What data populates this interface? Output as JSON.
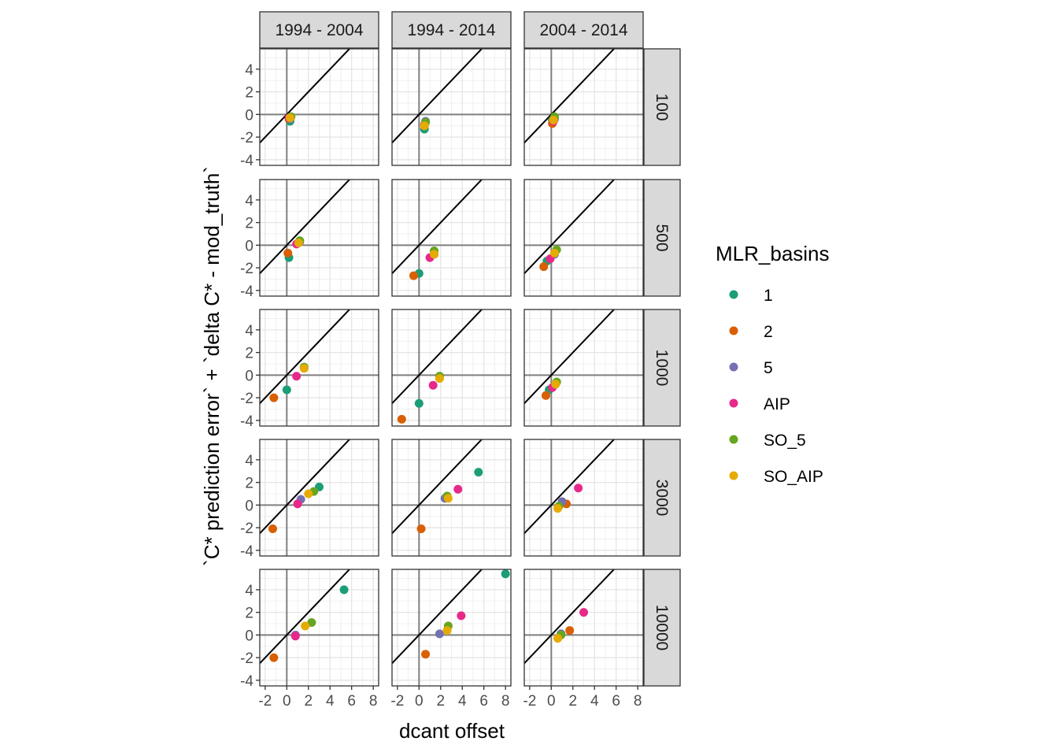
{
  "chart_data": {
    "type": "scatter",
    "xlabel": "dcant offset",
    "ylabel": "`C* prediction error` + `delta C* - mod_truth`",
    "xlim": [
      -2.5,
      8.5
    ],
    "ylim": [
      -4.5,
      5.8
    ],
    "x_ticks": [
      -2,
      0,
      2,
      4,
      6,
      8
    ],
    "y_ticks": [
      -4,
      -2,
      0,
      2,
      4
    ],
    "x_tick_labels": [
      "-2",
      "0",
      "2",
      "4",
      "6",
      "8"
    ],
    "y_tick_labels": [
      "-4",
      "-2",
      "0",
      "2",
      "4"
    ],
    "grid": true,
    "reference_line": "y = x",
    "col_facets": [
      "1994 - 2004",
      "1994 - 2014",
      "2004 - 2014"
    ],
    "row_facets": [
      "100",
      "500",
      "1000",
      "3000",
      "10000"
    ],
    "legend": {
      "title": "MLR_basins",
      "position": "right",
      "entries": [
        {
          "label": "1",
          "color": "#1B9E77"
        },
        {
          "label": "2",
          "color": "#D95F02"
        },
        {
          "label": "5",
          "color": "#7570B3"
        },
        {
          "label": "AIP",
          "color": "#E7298A"
        },
        {
          "label": "SO_5",
          "color": "#66A61E"
        },
        {
          "label": "SO_AIP",
          "color": "#E6AB02"
        }
      ]
    },
    "panels": [
      {
        "col": "1994 - 2004",
        "row": "100",
        "points": [
          {
            "s": "1",
            "x": 0.3,
            "y": -0.6
          },
          {
            "s": "2",
            "x": 0.2,
            "y": -0.4
          },
          {
            "s": "5",
            "x": 0.3,
            "y": -0.4
          },
          {
            "s": "AIP",
            "x": 0.2,
            "y": -0.3
          },
          {
            "s": "SO_5",
            "x": 0.4,
            "y": -0.2
          },
          {
            "s": "SO_AIP",
            "x": 0.3,
            "y": -0.3
          }
        ]
      },
      {
        "col": "1994 - 2014",
        "row": "100",
        "points": [
          {
            "s": "1",
            "x": 0.5,
            "y": -1.3
          },
          {
            "s": "2",
            "x": 0.5,
            "y": -1.0
          },
          {
            "s": "5",
            "x": 0.6,
            "y": -0.6
          },
          {
            "s": "AIP",
            "x": 0.5,
            "y": -0.9
          },
          {
            "s": "SO_5",
            "x": 0.6,
            "y": -0.7
          },
          {
            "s": "SO_AIP",
            "x": 0.5,
            "y": -1.0
          }
        ]
      },
      {
        "col": "2004 - 2014",
        "row": "100",
        "points": [
          {
            "s": "1",
            "x": 0.1,
            "y": -0.5
          },
          {
            "s": "2",
            "x": 0.1,
            "y": -0.8
          },
          {
            "s": "5",
            "x": 0.3,
            "y": -0.4
          },
          {
            "s": "AIP",
            "x": 0.2,
            "y": -0.6
          },
          {
            "s": "SO_5",
            "x": 0.3,
            "y": -0.2
          },
          {
            "s": "SO_AIP",
            "x": 0.2,
            "y": -0.5
          }
        ]
      },
      {
        "col": "1994 - 2004",
        "row": "500",
        "points": [
          {
            "s": "1",
            "x": 0.2,
            "y": -1.1
          },
          {
            "s": "2",
            "x": 0.1,
            "y": -0.7
          },
          {
            "s": "5",
            "x": 1.2,
            "y": 0.3
          },
          {
            "s": "AIP",
            "x": 0.9,
            "y": 0.1
          },
          {
            "s": "SO_5",
            "x": 1.2,
            "y": 0.4
          },
          {
            "s": "SO_AIP",
            "x": 1.1,
            "y": 0.2
          }
        ]
      },
      {
        "col": "1994 - 2014",
        "row": "500",
        "points": [
          {
            "s": "1",
            "x": 0.0,
            "y": -2.5
          },
          {
            "s": "2",
            "x": -0.5,
            "y": -2.7
          },
          {
            "s": "5",
            "x": 1.4,
            "y": -0.8
          },
          {
            "s": "AIP",
            "x": 1.0,
            "y": -1.1
          },
          {
            "s": "SO_5",
            "x": 1.4,
            "y": -0.5
          },
          {
            "s": "SO_AIP",
            "x": 1.4,
            "y": -0.8
          }
        ]
      },
      {
        "col": "2004 - 2014",
        "row": "500",
        "points": [
          {
            "s": "1",
            "x": -0.4,
            "y": -1.4
          },
          {
            "s": "2",
            "x": -0.7,
            "y": -1.9
          },
          {
            "s": "5",
            "x": 0.3,
            "y": -0.8
          },
          {
            "s": "AIP",
            "x": -0.1,
            "y": -1.2
          },
          {
            "s": "SO_5",
            "x": 0.5,
            "y": -0.4
          },
          {
            "s": "SO_AIP",
            "x": 0.3,
            "y": -0.7
          }
        ]
      },
      {
        "col": "1994 - 2004",
        "row": "1000",
        "points": [
          {
            "s": "1",
            "x": 0.0,
            "y": -1.3
          },
          {
            "s": "2",
            "x": -1.2,
            "y": -2.0
          },
          {
            "s": "5",
            "x": 1.6,
            "y": 0.7
          },
          {
            "s": "AIP",
            "x": 0.9,
            "y": -0.1
          },
          {
            "s": "SO_5",
            "x": 1.6,
            "y": 0.7
          },
          {
            "s": "SO_AIP",
            "x": 1.6,
            "y": 0.6
          }
        ]
      },
      {
        "col": "1994 - 2014",
        "row": "1000",
        "points": [
          {
            "s": "1",
            "x": 0.0,
            "y": -2.5
          },
          {
            "s": "2",
            "x": -1.6,
            "y": -3.9
          },
          {
            "s": "5",
            "x": 1.9,
            "y": -0.1
          },
          {
            "s": "AIP",
            "x": 1.3,
            "y": -0.9
          },
          {
            "s": "SO_5",
            "x": 1.9,
            "y": -0.1
          },
          {
            "s": "SO_AIP",
            "x": 1.9,
            "y": -0.3
          }
        ]
      },
      {
        "col": "2004 - 2014",
        "row": "1000",
        "points": [
          {
            "s": "1",
            "x": -0.2,
            "y": -1.3
          },
          {
            "s": "2",
            "x": -0.5,
            "y": -1.8
          },
          {
            "s": "5",
            "x": 0.4,
            "y": -0.8
          },
          {
            "s": "AIP",
            "x": 0.1,
            "y": -1.1
          },
          {
            "s": "SO_5",
            "x": 0.5,
            "y": -0.6
          },
          {
            "s": "SO_AIP",
            "x": 0.4,
            "y": -0.8
          }
        ]
      },
      {
        "col": "1994 - 2004",
        "row": "3000",
        "points": [
          {
            "s": "1",
            "x": 3.0,
            "y": 1.6
          },
          {
            "s": "2",
            "x": -1.3,
            "y": -2.1
          },
          {
            "s": "5",
            "x": 1.3,
            "y": 0.5
          },
          {
            "s": "AIP",
            "x": 1.0,
            "y": 0.1
          },
          {
            "s": "SO_5",
            "x": 2.5,
            "y": 1.2
          },
          {
            "s": "SO_AIP",
            "x": 2.0,
            "y": 1.0
          }
        ]
      },
      {
        "col": "1994 - 2014",
        "row": "3000",
        "points": [
          {
            "s": "1",
            "x": 5.5,
            "y": 2.9
          },
          {
            "s": "2",
            "x": 0.2,
            "y": -2.1
          },
          {
            "s": "5",
            "x": 2.4,
            "y": 0.6
          },
          {
            "s": "AIP",
            "x": 3.6,
            "y": 1.4
          },
          {
            "s": "SO_5",
            "x": 2.6,
            "y": 0.8
          },
          {
            "s": "SO_AIP",
            "x": 2.7,
            "y": 0.6
          }
        ]
      },
      {
        "col": "2004 - 2014",
        "row": "3000",
        "points": [
          {
            "s": "1",
            "x": 1.0,
            "y": 0.2
          },
          {
            "s": "2",
            "x": 1.4,
            "y": 0.1
          },
          {
            "s": "5",
            "x": 1.0,
            "y": 0.3
          },
          {
            "s": "AIP",
            "x": 2.5,
            "y": 1.5
          },
          {
            "s": "SO_5",
            "x": 0.7,
            "y": -0.1
          },
          {
            "s": "SO_AIP",
            "x": 0.6,
            "y": -0.3
          }
        ]
      },
      {
        "col": "1994 - 2004",
        "row": "10000",
        "points": [
          {
            "s": "1",
            "x": 5.3,
            "y": 4.0
          },
          {
            "s": "2",
            "x": -1.2,
            "y": -2.0
          },
          {
            "s": "5",
            "x": 0.8,
            "y": 0.0
          },
          {
            "s": "AIP",
            "x": 0.8,
            "y": -0.1
          },
          {
            "s": "SO_5",
            "x": 2.3,
            "y": 1.1
          },
          {
            "s": "SO_AIP",
            "x": 1.7,
            "y": 0.8
          }
        ]
      },
      {
        "col": "1994 - 2014",
        "row": "10000",
        "points": [
          {
            "s": "1",
            "x": 8.0,
            "y": 5.4
          },
          {
            "s": "2",
            "x": 0.6,
            "y": -1.7
          },
          {
            "s": "5",
            "x": 1.9,
            "y": 0.1
          },
          {
            "s": "AIP",
            "x": 3.9,
            "y": 1.7
          },
          {
            "s": "SO_5",
            "x": 2.7,
            "y": 0.8
          },
          {
            "s": "SO_AIP",
            "x": 2.6,
            "y": 0.4
          }
        ]
      },
      {
        "col": "2004 - 2014",
        "row": "10000",
        "points": [
          {
            "s": "1",
            "x": 0.9,
            "y": 0.1
          },
          {
            "s": "2",
            "x": 1.7,
            "y": 0.4
          },
          {
            "s": "5",
            "x": 0.9,
            "y": 0.1
          },
          {
            "s": "AIP",
            "x": 3.0,
            "y": 2.0
          },
          {
            "s": "SO_5",
            "x": 0.9,
            "y": 0.0
          },
          {
            "s": "SO_AIP",
            "x": 0.6,
            "y": -0.3
          }
        ]
      }
    ]
  }
}
